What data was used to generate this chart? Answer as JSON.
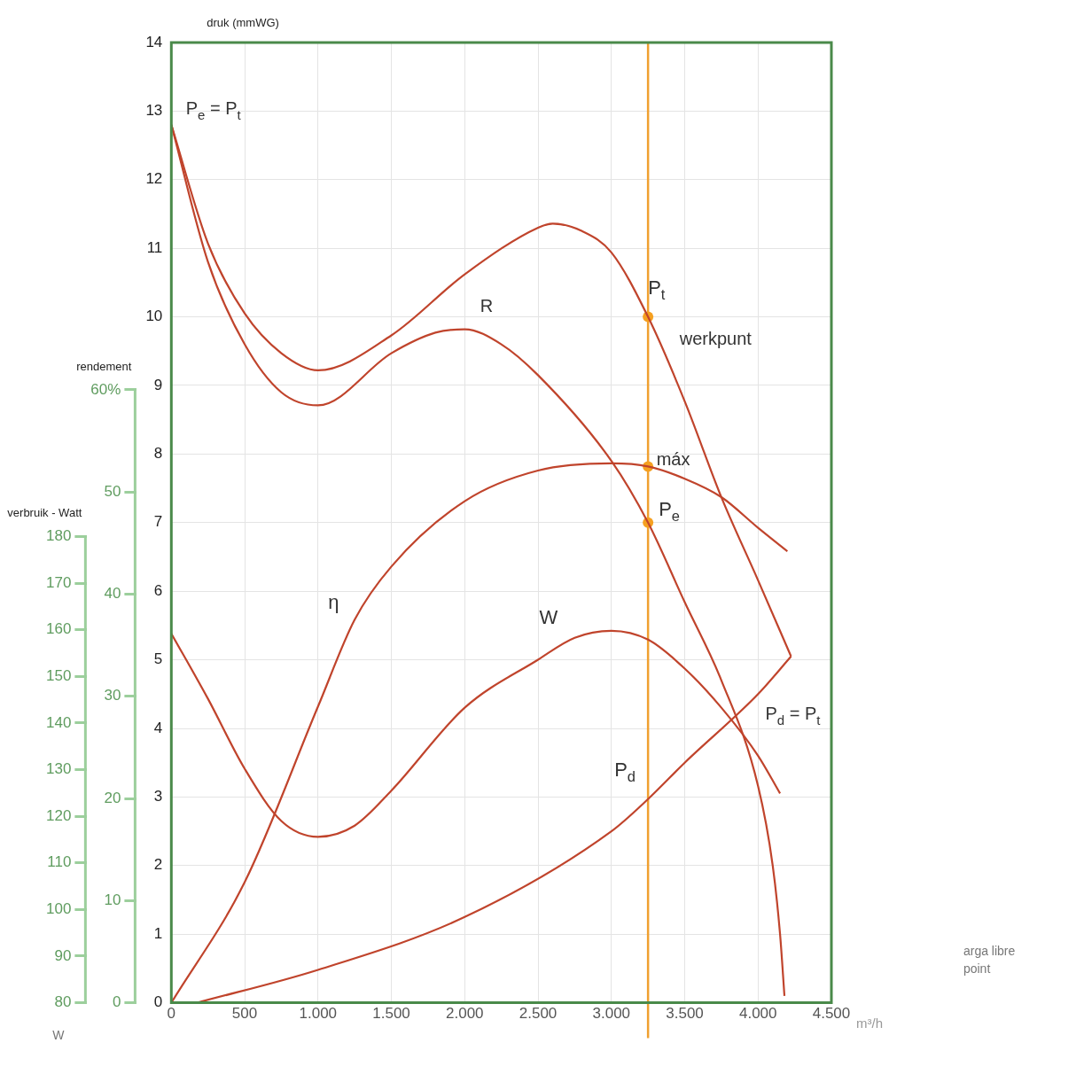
{
  "chart_data": {
    "type": "line",
    "ylabel": "druk (mmWG)",
    "y2label": "rendement",
    "y3label": "verbruik - Watt",
    "xlabel": "m³/h",
    "xlim": [
      0,
      4500
    ],
    "xticks": [
      0,
      500,
      {
        "value": 1000,
        "label": "1.000"
      },
      {
        "value": 1500,
        "label": "1.500"
      },
      {
        "value": 2000,
        "label": "2.000"
      },
      {
        "value": 2500,
        "label": "2.500"
      },
      {
        "value": 3000,
        "label": "3.000"
      },
      {
        "value": 3500,
        "label": "3.500"
      },
      {
        "value": 4000,
        "label": "4.000"
      },
      {
        "value": 4500,
        "label": "4.500"
      }
    ],
    "ylim": [
      0,
      14
    ],
    "yticks": [
      0,
      1,
      2,
      3,
      4,
      5,
      6,
      7,
      8,
      9,
      10,
      11,
      12,
      13,
      14
    ],
    "y2lim": [
      0,
      94
    ],
    "y2ticks": [
      0,
      10,
      20,
      30,
      40,
      50,
      {
        "value": 60,
        "label": "60%"
      }
    ],
    "y3lim": [
      80,
      286
    ],
    "y3ticks": [
      80,
      90,
      100,
      110,
      120,
      130,
      140,
      150,
      160,
      170,
      180
    ],
    "grid": true,
    "line_style": "solid",
    "series": [
      {
        "name": "P$_{t}$",
        "color": "#c0442c",
        "x": [
          0,
          250,
          500,
          750,
          1000,
          1500,
          2000,
          2500,
          2600,
          2800,
          3000,
          3250,
          3500,
          3750,
          4000,
          4225
        ],
        "values": [
          12.8,
          11.07,
          10.05,
          9.47,
          9.22,
          9.73,
          10.62,
          11.3,
          11.36,
          11.25,
          10.94,
          10,
          8.77,
          7.37,
          6.16,
          5.05
        ]
      },
      {
        "name": "P$_{e}$",
        "color": "#c0442c",
        "x": [
          0,
          250,
          500,
          750,
          1000,
          1500,
          1800,
          2000,
          2250,
          2500,
          3000,
          3250,
          3500,
          3750,
          4000,
          4100,
          4150,
          4180
        ],
        "values": [
          12.8,
          10.8,
          9.6,
          8.9,
          8.71,
          9.47,
          9.77,
          9.82,
          9.6,
          9.15,
          7.9,
          7,
          5.84,
          4.7,
          3.16,
          2,
          1,
          0.1
        ]
      },
      {
        "name": "P$_{d}$",
        "color": "#c0442c",
        "x": [
          176,
          1000,
          2000,
          3000,
          3250,
          3500,
          4000,
          4225
        ],
        "values": [
          0,
          0.48,
          1.25,
          2.5,
          2.97,
          3.5,
          4.5,
          5.05
        ]
      },
      {
        "name": "η",
        "color": "#c0442c",
        "axis": "y2",
        "x": [
          0,
          500,
          1000,
          1250,
          1500,
          2000,
          2500,
          3000,
          3250,
          3500,
          3750,
          4000,
          4200
        ],
        "values": [
          0,
          11.8,
          29,
          37.5,
          42.7,
          49.1,
          52.1,
          52.8,
          52.5,
          51.3,
          49.5,
          46.5,
          44.2
        ]
      },
      {
        "name": "W",
        "color": "#c0442c",
        "axis": "y3",
        "x": [
          0,
          250,
          500,
          750,
          1000,
          1250,
          1500,
          2000,
          2500,
          2750,
          3000,
          3250,
          3500,
          3750,
          4000,
          4150
        ],
        "values": [
          159.2,
          145.2,
          130.2,
          119,
          115.6,
          118,
          125.5,
          143.3,
          153.6,
          158.3,
          159.8,
          157.9,
          151.7,
          143.3,
          133,
          124.9
        ]
      },
      {
        "type": "scatter",
        "color": "#f5a020",
        "x": [
          3250,
          3250
        ],
        "values": [
          10,
          7
        ]
      },
      {
        "type": "scatter",
        "color": "#f5a020",
        "axis": "y2",
        "x": [
          3250
        ],
        "values": [
          52.5
        ]
      }
    ],
    "ref_lines": [
      {
        "axis": "x",
        "value": 3250,
        "color": "#f0a030"
      }
    ],
    "annotations": [
      "P$_{e}$ = P$_{t}$",
      "R",
      "werkpunt",
      "máx",
      "P$_{d}$ = P$_{t}$",
      "W",
      "arga libre",
      "point"
    ]
  }
}
